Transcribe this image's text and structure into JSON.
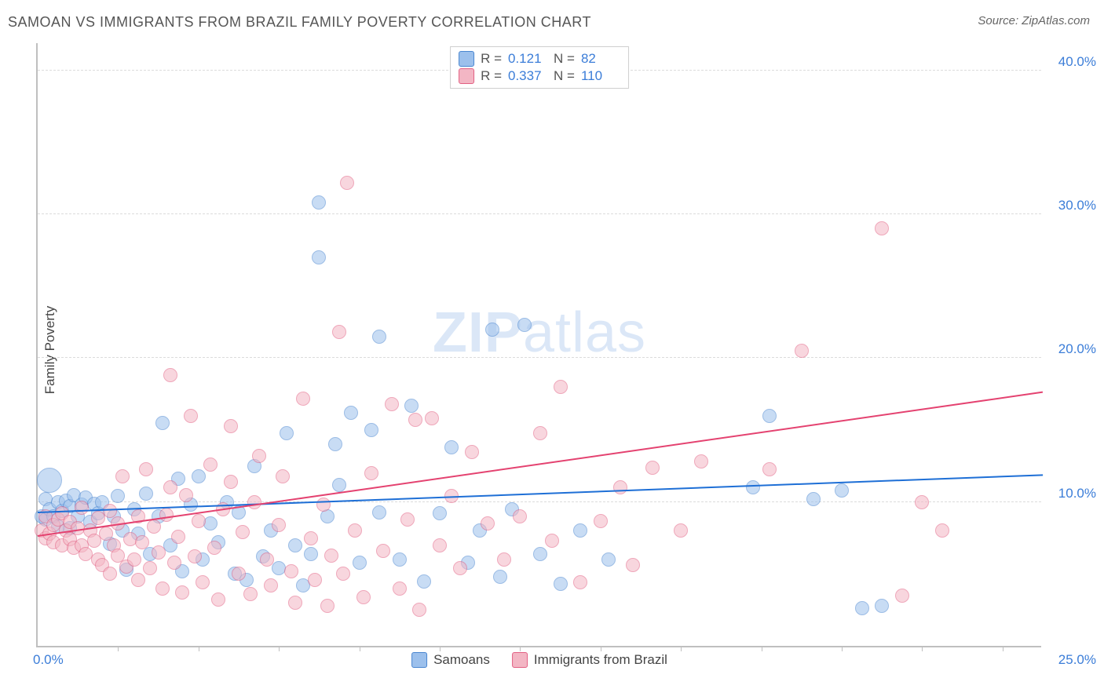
{
  "title": "SAMOAN VS IMMIGRANTS FROM BRAZIL FAMILY POVERTY CORRELATION CHART",
  "source_label": "Source:",
  "source_value": "ZipAtlas.com",
  "watermark": {
    "bold": "ZIP",
    "rest": "atlas"
  },
  "ylabel": "Family Poverty",
  "chart": {
    "type": "scatter",
    "xlim": [
      0.0,
      25.0
    ],
    "ylim": [
      0.0,
      42.0
    ],
    "y_ticks": [
      10.0,
      20.0,
      30.0,
      40.0
    ],
    "y_tick_labels": [
      "10.0%",
      "20.0%",
      "30.0%",
      "40.0%"
    ],
    "x_minor_ticks": [
      2.0,
      4.0,
      6.0,
      8.0,
      10.0,
      12.0,
      14.0,
      16.0,
      18.0,
      20.0,
      22.0,
      24.0
    ],
    "x_origin_label": "0.0%",
    "x_max_label": "25.0%",
    "background_color": "#ffffff",
    "grid_color": "#dcdcdc",
    "axis_color": "#bfbfbf",
    "tick_label_color": "#3b7dd8",
    "marker_radius": 9,
    "marker_opacity": 0.55,
    "series": [
      {
        "id": "samoans",
        "label": "Samoans",
        "fill": "#9cc0ec",
        "stroke": "#4a86d0",
        "trend_color": "#1e6fd6",
        "R": "0.121",
        "N": "82",
        "trend": {
          "x1": 0.0,
          "y1": 9.2,
          "x2": 25.0,
          "y2": 11.8
        },
        "points": [
          [
            0.1,
            9.0
          ],
          [
            0.2,
            8.8
          ],
          [
            0.2,
            10.2
          ],
          [
            0.3,
            9.5
          ],
          [
            0.3,
            11.5,
            16
          ],
          [
            0.4,
            9.0
          ],
          [
            0.5,
            10.0
          ],
          [
            0.5,
            8.3
          ],
          [
            0.6,
            9.4
          ],
          [
            0.7,
            10.1
          ],
          [
            0.8,
            9.7
          ],
          [
            0.8,
            8.2
          ],
          [
            0.9,
            10.5
          ],
          [
            1.0,
            9.0
          ],
          [
            1.1,
            9.8
          ],
          [
            1.2,
            10.3
          ],
          [
            1.3,
            8.6
          ],
          [
            1.4,
            9.9
          ],
          [
            1.5,
            9.2
          ],
          [
            1.6,
            10.0
          ],
          [
            1.8,
            7.1
          ],
          [
            1.9,
            9.0
          ],
          [
            2.0,
            10.4
          ],
          [
            2.1,
            8.0
          ],
          [
            2.2,
            5.3
          ],
          [
            2.4,
            9.5
          ],
          [
            2.5,
            7.8
          ],
          [
            2.7,
            10.6
          ],
          [
            2.8,
            6.4
          ],
          [
            3.0,
            9.0
          ],
          [
            3.1,
            15.5
          ],
          [
            3.3,
            7.0
          ],
          [
            3.5,
            11.6
          ],
          [
            3.6,
            5.2
          ],
          [
            3.8,
            9.8
          ],
          [
            4.0,
            11.8
          ],
          [
            4.1,
            6.0
          ],
          [
            4.3,
            8.5
          ],
          [
            4.5,
            7.2
          ],
          [
            4.7,
            10.0
          ],
          [
            4.9,
            5.0
          ],
          [
            5.0,
            9.3
          ],
          [
            5.2,
            4.6
          ],
          [
            5.4,
            12.5
          ],
          [
            5.6,
            6.2
          ],
          [
            5.8,
            8.0
          ],
          [
            6.0,
            5.4
          ],
          [
            6.2,
            14.8
          ],
          [
            6.4,
            7.0
          ],
          [
            6.6,
            4.2
          ],
          [
            6.8,
            6.4
          ],
          [
            7.0,
            27.0
          ],
          [
            7.0,
            30.8
          ],
          [
            7.2,
            9.0
          ],
          [
            7.4,
            14.0
          ],
          [
            7.5,
            11.2
          ],
          [
            7.8,
            16.2
          ],
          [
            8.0,
            5.8
          ],
          [
            8.3,
            15.0
          ],
          [
            8.5,
            9.3
          ],
          [
            8.5,
            21.5
          ],
          [
            9.0,
            6.0
          ],
          [
            9.3,
            16.7
          ],
          [
            9.6,
            4.5
          ],
          [
            10.0,
            9.2
          ],
          [
            10.3,
            13.8
          ],
          [
            10.7,
            5.8
          ],
          [
            11.0,
            8.0
          ],
          [
            11.3,
            22.0
          ],
          [
            11.5,
            4.8
          ],
          [
            11.8,
            9.5
          ],
          [
            12.1,
            22.3
          ],
          [
            12.5,
            6.4
          ],
          [
            13.0,
            4.3
          ],
          [
            13.5,
            8.0
          ],
          [
            14.2,
            6.0
          ],
          [
            17.8,
            11.0
          ],
          [
            18.2,
            16.0
          ],
          [
            19.3,
            10.2
          ],
          [
            20.0,
            10.8
          ],
          [
            20.5,
            2.6
          ],
          [
            21.0,
            2.8
          ]
        ]
      },
      {
        "id": "brazil",
        "label": "Immigrants from Brazil",
        "fill": "#f3b6c4",
        "stroke": "#e26083",
        "trend_color": "#e44270",
        "R": "0.337",
        "N": "110",
        "trend": {
          "x1": 0.0,
          "y1": 7.6,
          "x2": 25.0,
          "y2": 17.6
        },
        "points": [
          [
            0.1,
            8.0
          ],
          [
            0.2,
            7.5
          ],
          [
            0.2,
            9.0
          ],
          [
            0.3,
            7.8
          ],
          [
            0.4,
            8.4
          ],
          [
            0.4,
            7.2
          ],
          [
            0.5,
            8.8
          ],
          [
            0.6,
            7.0
          ],
          [
            0.6,
            9.2
          ],
          [
            0.7,
            8.0
          ],
          [
            0.8,
            7.4
          ],
          [
            0.8,
            8.6
          ],
          [
            0.9,
            6.8
          ],
          [
            1.0,
            8.2
          ],
          [
            1.1,
            7.0
          ],
          [
            1.1,
            9.6
          ],
          [
            1.2,
            6.4
          ],
          [
            1.3,
            8.0
          ],
          [
            1.4,
            7.3
          ],
          [
            1.5,
            6.0
          ],
          [
            1.5,
            8.9
          ],
          [
            1.6,
            5.6
          ],
          [
            1.7,
            7.8
          ],
          [
            1.8,
            9.4
          ],
          [
            1.8,
            5.0
          ],
          [
            1.9,
            7.0
          ],
          [
            2.0,
            6.3
          ],
          [
            2.0,
            8.5
          ],
          [
            2.1,
            11.8
          ],
          [
            2.2,
            5.5
          ],
          [
            2.3,
            7.4
          ],
          [
            2.4,
            6.0
          ],
          [
            2.5,
            9.0
          ],
          [
            2.5,
            4.6
          ],
          [
            2.6,
            7.2
          ],
          [
            2.7,
            12.3
          ],
          [
            2.8,
            5.4
          ],
          [
            2.9,
            8.3
          ],
          [
            3.0,
            6.5
          ],
          [
            3.1,
            4.0
          ],
          [
            3.2,
            9.1
          ],
          [
            3.3,
            11.0
          ],
          [
            3.3,
            18.8
          ],
          [
            3.4,
            5.8
          ],
          [
            3.5,
            7.6
          ],
          [
            3.6,
            3.7
          ],
          [
            3.7,
            10.5
          ],
          [
            3.8,
            16.0
          ],
          [
            3.9,
            6.2
          ],
          [
            4.0,
            8.7
          ],
          [
            4.1,
            4.4
          ],
          [
            4.3,
            12.6
          ],
          [
            4.4,
            6.8
          ],
          [
            4.5,
            3.2
          ],
          [
            4.6,
            9.5
          ],
          [
            4.8,
            11.4
          ],
          [
            4.8,
            15.3
          ],
          [
            5.0,
            5.0
          ],
          [
            5.1,
            7.9
          ],
          [
            5.3,
            3.6
          ],
          [
            5.4,
            10.0
          ],
          [
            5.5,
            13.2
          ],
          [
            5.7,
            6.0
          ],
          [
            5.8,
            4.2
          ],
          [
            6.0,
            8.4
          ],
          [
            6.1,
            11.8
          ],
          [
            6.3,
            5.2
          ],
          [
            6.4,
            3.0
          ],
          [
            6.6,
            17.2
          ],
          [
            6.8,
            7.5
          ],
          [
            6.9,
            4.6
          ],
          [
            7.1,
            9.8
          ],
          [
            7.2,
            2.8
          ],
          [
            7.3,
            6.3
          ],
          [
            7.5,
            21.8
          ],
          [
            7.6,
            5.0
          ],
          [
            7.7,
            32.2
          ],
          [
            7.9,
            8.0
          ],
          [
            8.1,
            3.4
          ],
          [
            8.3,
            12.0
          ],
          [
            8.6,
            6.6
          ],
          [
            8.8,
            16.8
          ],
          [
            9.0,
            4.0
          ],
          [
            9.2,
            8.8
          ],
          [
            9.4,
            15.7
          ],
          [
            9.5,
            2.5
          ],
          [
            9.8,
            15.8
          ],
          [
            10.0,
            7.0
          ],
          [
            10.3,
            10.4
          ],
          [
            10.5,
            5.4
          ],
          [
            10.8,
            13.5
          ],
          [
            11.2,
            8.5
          ],
          [
            11.6,
            6.0
          ],
          [
            12.0,
            9.0
          ],
          [
            12.5,
            14.8
          ],
          [
            12.8,
            7.3
          ],
          [
            13.0,
            18.0
          ],
          [
            13.5,
            4.4
          ],
          [
            14.0,
            8.7
          ],
          [
            14.5,
            11.0
          ],
          [
            14.8,
            5.6
          ],
          [
            15.3,
            12.4
          ],
          [
            16.0,
            8.0
          ],
          [
            16.5,
            12.8
          ],
          [
            18.2,
            12.3
          ],
          [
            19.0,
            20.5
          ],
          [
            21.0,
            29.0
          ],
          [
            21.5,
            3.5
          ],
          [
            22.0,
            10.0
          ],
          [
            22.5,
            8.0
          ]
        ]
      }
    ]
  },
  "legend_top_labels": {
    "R": "R  =",
    "N": "N  ="
  },
  "legend_bottom": [
    {
      "series": "samoans"
    },
    {
      "series": "brazil"
    }
  ]
}
